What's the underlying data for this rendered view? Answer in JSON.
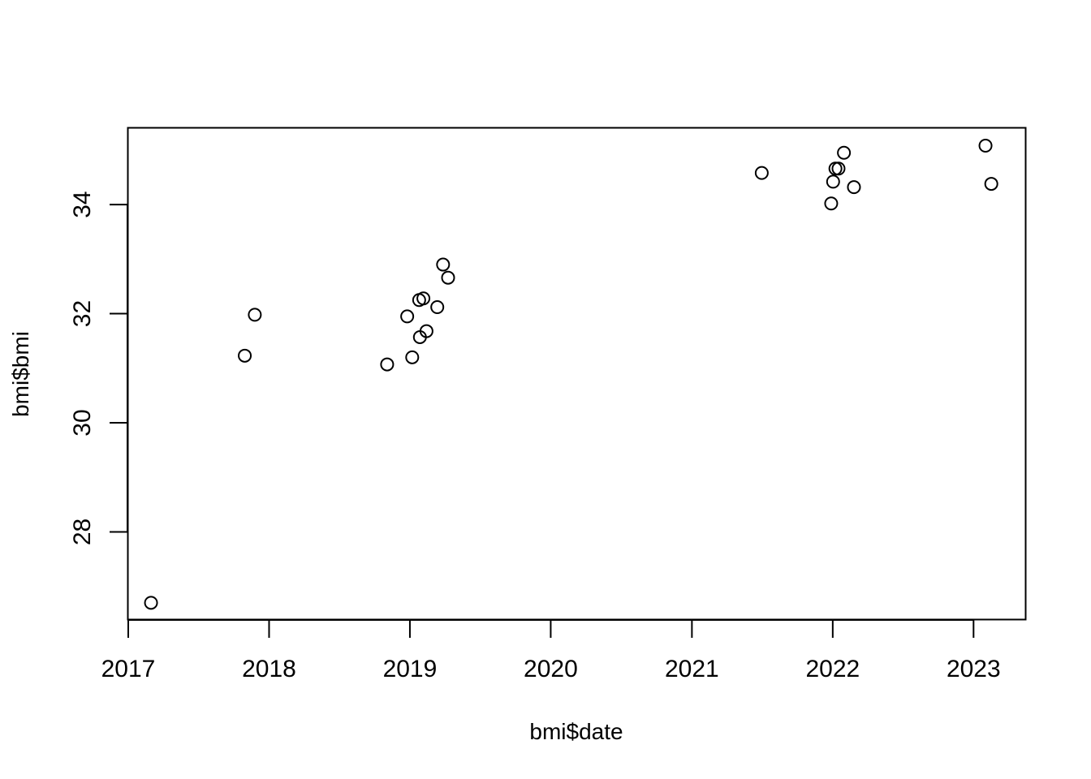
{
  "chart_data": {
    "type": "scatter",
    "title": "",
    "xlabel": "bmi$date",
    "ylabel": "bmi$bmi",
    "x_ticks": [
      "2017",
      "2018",
      "2019",
      "2020",
      "2021",
      "2022",
      "2023"
    ],
    "y_ticks": [
      "28",
      "30",
      "32",
      "34"
    ],
    "xlim": [
      "2017-01-01",
      "2023-05-15"
    ],
    "ylim": [
      26.4,
      35.4
    ],
    "grid": false,
    "legend": "none",
    "marker": "open-circle",
    "points": [
      {
        "x": "2017-03-01",
        "y": 26.7
      },
      {
        "x": "2017-10-30",
        "y": 31.23
      },
      {
        "x": "2017-11-25",
        "y": 31.98
      },
      {
        "x": "2018-11-03",
        "y": 31.07
      },
      {
        "x": "2018-12-25",
        "y": 31.95
      },
      {
        "x": "2019-01-07",
        "y": 31.2
      },
      {
        "x": "2019-01-25",
        "y": 32.25
      },
      {
        "x": "2019-01-27",
        "y": 31.57
      },
      {
        "x": "2019-02-05",
        "y": 32.28
      },
      {
        "x": "2019-02-13",
        "y": 31.68
      },
      {
        "x": "2019-03-13",
        "y": 32.12
      },
      {
        "x": "2019-03-28",
        "y": 32.9
      },
      {
        "x": "2019-04-10",
        "y": 32.66
      },
      {
        "x": "2021-07-01",
        "y": 34.58
      },
      {
        "x": "2021-12-28",
        "y": 34.02
      },
      {
        "x": "2022-01-02",
        "y": 34.42
      },
      {
        "x": "2022-01-08",
        "y": 34.66
      },
      {
        "x": "2022-01-16",
        "y": 34.66
      },
      {
        "x": "2022-01-30",
        "y": 34.95
      },
      {
        "x": "2022-02-25",
        "y": 34.32
      },
      {
        "x": "2023-02-01",
        "y": 35.08
      },
      {
        "x": "2023-02-16",
        "y": 34.38
      }
    ]
  }
}
